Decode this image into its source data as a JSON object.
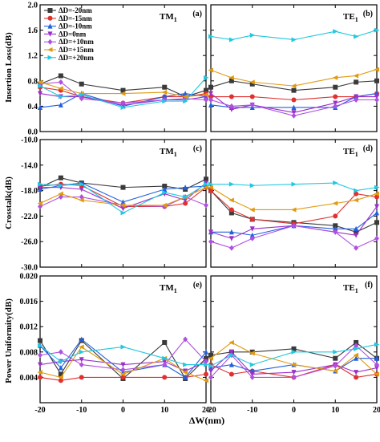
{
  "figure": {
    "xlabel": "ΔW(nm)",
    "ylabels": [
      "Insertion Loss(dB)",
      "Crosstalk(dB)",
      "Power Uniformity(dB)"
    ],
    "mode_titles": [
      "TM1",
      "TE1"
    ],
    "panel_letters": [
      "(a)",
      "(b)",
      "(c)",
      "(d)",
      "(e)",
      "(f)"
    ]
  },
  "legend": {
    "entries": [
      "ΔD=-20nm",
      "ΔD=-15nm",
      "ΔD=-10nm",
      "ΔD=0nm",
      "ΔD=+10nm",
      "ΔD=+15nm",
      "ΔD=+20nm"
    ],
    "colors": [
      "#3a3a3a",
      "#e03030",
      "#2060e0",
      "#9b30c8",
      "#b050e0",
      "#e09a10",
      "#20c8e0"
    ],
    "placement": "top-left of panel (a)"
  },
  "chart_data": [
    {
      "panel": "(a)",
      "type": "line",
      "title": "TM1",
      "ylabel": "Insertion Loss(dB)",
      "x": [
        -20,
        -15,
        -10,
        0,
        10,
        15,
        20
      ],
      "ylim": [
        0,
        2.0
      ],
      "yticks": [
        0,
        0.4,
        0.8,
        1.2,
        1.6,
        2.0
      ],
      "series": [
        {
          "name": "ΔD=-20nm",
          "values": [
            0.75,
            0.88,
            0.75,
            0.65,
            0.7,
            0.55,
            0.65
          ]
        },
        {
          "name": "ΔD=-15nm",
          "values": [
            0.7,
            0.65,
            0.55,
            0.45,
            0.55,
            0.55,
            0.6
          ]
        },
        {
          "name": "ΔD=-10nm",
          "values": [
            0.38,
            0.42,
            0.6,
            0.4,
            0.55,
            0.6,
            0.55
          ]
        },
        {
          "name": "ΔD=0nm",
          "values": [
            0.6,
            0.55,
            0.55,
            0.42,
            0.5,
            0.5,
            0.55
          ]
        },
        {
          "name": "ΔD=+10nm",
          "values": [
            0.75,
            0.78,
            0.52,
            0.45,
            0.5,
            0.52,
            0.5
          ]
        },
        {
          "name": "ΔD=+15nm",
          "values": [
            0.78,
            0.68,
            0.6,
            0.6,
            0.62,
            0.55,
            0.58
          ]
        },
        {
          "name": "ΔD=+20nm",
          "values": [
            0.72,
            0.55,
            0.58,
            0.38,
            0.48,
            0.48,
            0.85
          ]
        }
      ]
    },
    {
      "panel": "(b)",
      "type": "line",
      "title": "TE1",
      "x": [
        -20,
        -15,
        -10,
        0,
        10,
        15,
        20
      ],
      "ylim": [
        0,
        2.0
      ],
      "series": [
        {
          "name": "ΔD=-20nm",
          "values": [
            0.7,
            0.8,
            0.75,
            0.65,
            0.7,
            0.78,
            0.8
          ]
        },
        {
          "name": "ΔD=-15nm",
          "values": [
            0.55,
            0.55,
            0.55,
            0.5,
            0.55,
            0.55,
            0.6
          ]
        },
        {
          "name": "ΔD=-10nm",
          "values": [
            0.42,
            0.38,
            0.38,
            0.38,
            0.38,
            0.55,
            0.6
          ]
        },
        {
          "name": "ΔD=0nm",
          "values": [
            0.6,
            0.35,
            0.42,
            0.3,
            0.45,
            0.55,
            0.55
          ]
        },
        {
          "name": "ΔD=+10nm",
          "values": [
            0.5,
            0.4,
            0.42,
            0.25,
            0.4,
            0.5,
            0.5
          ]
        },
        {
          "name": "ΔD=+15nm",
          "values": [
            0.97,
            0.85,
            0.78,
            0.72,
            0.85,
            0.88,
            0.98
          ]
        },
        {
          "name": "ΔD=+20nm",
          "values": [
            1.5,
            1.45,
            1.52,
            1.45,
            1.58,
            1.5,
            1.6
          ]
        }
      ]
    },
    {
      "panel": "(c)",
      "type": "line",
      "title": "TM1",
      "ylabel": "Crosstalk(dB)",
      "x": [
        -20,
        -15,
        -10,
        0,
        10,
        15,
        20
      ],
      "ylim": [
        -30,
        -10
      ],
      "yticks": [
        -30,
        -26,
        -22,
        -18,
        -14,
        -10
      ],
      "series": [
        {
          "name": "ΔD=-20nm",
          "values": [
            -17.5,
            -16.0,
            -16.8,
            -17.5,
            -17.3,
            -17.8,
            -16.2
          ]
        },
        {
          "name": "ΔD=-15nm",
          "values": [
            -17.3,
            -17.0,
            -17.2,
            -20.5,
            -20.5,
            -20.0,
            -17.5
          ]
        },
        {
          "name": "ΔD=-10nm",
          "values": [
            -17.8,
            -17.2,
            -16.8,
            -19.8,
            -17.8,
            -17.5,
            -17.3
          ]
        },
        {
          "name": "ΔD=0nm",
          "values": [
            -17.5,
            -17.5,
            -17.8,
            -20.8,
            -18.5,
            -19.5,
            -16.8
          ]
        },
        {
          "name": "ΔD=+10nm",
          "values": [
            -20.5,
            -19.0,
            -19.0,
            -20.3,
            -20.5,
            -19.0,
            -20.3
          ]
        },
        {
          "name": "ΔD=+15nm",
          "values": [
            -20.0,
            -18.5,
            -19.5,
            -20.3,
            -20.3,
            -19.0,
            -17.5
          ]
        },
        {
          "name": "ΔD=+20nm",
          "values": [
            -17.0,
            -17.2,
            -17.0,
            -21.5,
            -18.3,
            -19.0,
            -17.0
          ]
        }
      ]
    },
    {
      "panel": "(d)",
      "type": "line",
      "title": "TE1",
      "x": [
        -20,
        -15,
        -10,
        0,
        10,
        15,
        20
      ],
      "ylim": [
        -30,
        -10
      ],
      "series": [
        {
          "name": "ΔD=-20nm",
          "values": [
            -18.0,
            -21.5,
            -22.5,
            -23.0,
            -23.5,
            -24.5,
            -23.0
          ]
        },
        {
          "name": "ΔD=-15nm",
          "values": [
            -18.0,
            -21.0,
            -22.5,
            -23.2,
            -22.0,
            -18.5,
            -19.0
          ]
        },
        {
          "name": "ΔD=-10nm",
          "values": [
            -24.5,
            -24.5,
            -25.0,
            -23.5,
            -24.0,
            -24.0,
            -21.5
          ]
        },
        {
          "name": "ΔD=0nm",
          "values": [
            -24.5,
            -25.5,
            -24.0,
            -23.5,
            -24.5,
            -25.0,
            -20.5
          ]
        },
        {
          "name": "ΔD=+10nm",
          "values": [
            -26.0,
            -27.0,
            -25.5,
            -23.5,
            -24.5,
            -27.0,
            -25.5
          ]
        },
        {
          "name": "ΔD=+15nm",
          "values": [
            -17.5,
            -19.5,
            -21.0,
            -21.0,
            -20.0,
            -19.5,
            -18.5
          ]
        },
        {
          "name": "ΔD=+20nm",
          "values": [
            -17.0,
            -17.0,
            -17.2,
            -17.0,
            -16.8,
            -18.0,
            -17.5
          ]
        }
      ]
    },
    {
      "panel": "(e)",
      "type": "line",
      "title": "TM1",
      "ylabel": "Power Uniformity(dB)",
      "x": [
        -20,
        -15,
        -10,
        0,
        10,
        15,
        20
      ],
      "ylim": [
        0,
        0.02
      ],
      "yticks": [
        0,
        0.004,
        0.008,
        0.012,
        0.016,
        0.02
      ],
      "ytick_labels": [
        "",
        "0.004",
        "0.008",
        "0.012",
        "0.016",
        "0.020"
      ],
      "series": [
        {
          "name": "ΔD=-20nm",
          "values": [
            0.0098,
            0.0045,
            0.0098,
            0.0038,
            0.0095,
            0.0038,
            0.007
          ]
        },
        {
          "name": "ΔD=-15nm",
          "values": [
            0.004,
            0.0035,
            0.004,
            0.004,
            0.004,
            0.004,
            0.0045
          ]
        },
        {
          "name": "ΔD=-10nm",
          "values": [
            0.009,
            0.0055,
            0.01,
            0.0048,
            0.006,
            0.004,
            0.008
          ]
        },
        {
          "name": "ΔD=0nm",
          "values": [
            0.006,
            0.0065,
            0.0068,
            0.006,
            0.0065,
            0.005,
            0.0065
          ]
        },
        {
          "name": "ΔD=+10nm",
          "values": [
            0.0075,
            0.008,
            0.006,
            0.0052,
            0.006,
            0.01,
            0.0065
          ]
        },
        {
          "name": "ΔD=+15nm",
          "values": [
            0.0048,
            0.004,
            0.0088,
            0.0045,
            0.007,
            0.0048,
            0.0035
          ]
        },
        {
          "name": "ΔD=+20nm",
          "values": [
            0.009,
            0.0065,
            0.008,
            0.0088,
            0.007,
            0.006,
            0.006
          ]
        }
      ]
    },
    {
      "panel": "(f)",
      "type": "line",
      "title": "TE1",
      "x": [
        -20,
        -15,
        -10,
        0,
        10,
        15,
        20
      ],
      "ylim": [
        0,
        0.02
      ],
      "series": [
        {
          "name": "ΔD=-20nm",
          "values": [
            0.0075,
            0.008,
            0.008,
            0.0085,
            0.007,
            0.0095,
            0.007
          ]
        },
        {
          "name": "ΔD=-15nm",
          "values": [
            0.006,
            0.0045,
            0.005,
            0.004,
            0.006,
            0.004,
            0.0045
          ]
        },
        {
          "name": "ΔD=-10nm",
          "values": [
            0.0055,
            0.006,
            0.005,
            0.006,
            0.005,
            0.007,
            0.007
          ]
        },
        {
          "name": "ΔD=0nm",
          "values": [
            0.005,
            0.008,
            0.0045,
            0.0048,
            0.006,
            0.0048,
            0.0055
          ]
        },
        {
          "name": "ΔD=+10nm",
          "values": [
            0.004,
            0.0075,
            0.004,
            0.004,
            0.0058,
            0.009,
            0.006
          ]
        },
        {
          "name": "ΔD=+15nm",
          "values": [
            0.007,
            0.0095,
            0.0078,
            0.006,
            0.005,
            0.0075,
            0.0045
          ]
        },
        {
          "name": "ΔD=+20nm",
          "values": [
            0.0058,
            0.0075,
            0.006,
            0.008,
            0.008,
            0.0085,
            0.0092
          ]
        }
      ]
    }
  ]
}
